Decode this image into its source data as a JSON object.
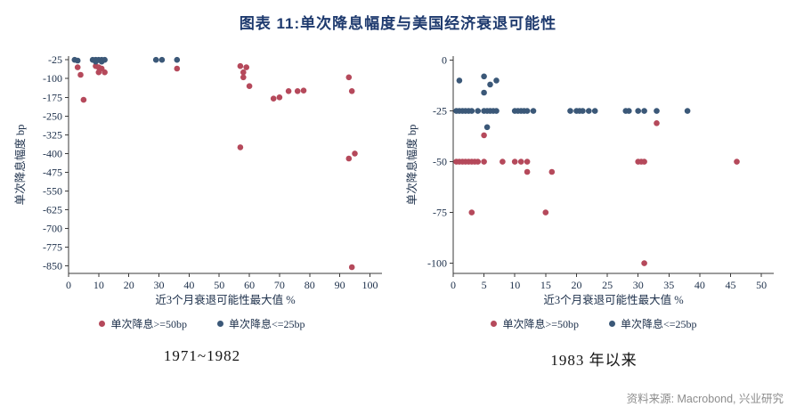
{
  "title": "图表 11:单次降息幅度与美国经济衰退可能性",
  "source": "资料来源: Macrobond, 兴业研究",
  "colors": {
    "red": "#b5495b",
    "navy": "#3b5878",
    "title": "#1e3a6e",
    "axis_text": "#1c2f4a",
    "source_text": "#8c8c8c"
  },
  "chart_data": [
    {
      "type": "scatter",
      "caption": "1971~1982",
      "xlabel": "近3个月衰退可能性最大值 %",
      "ylabel": "单次降息幅度 bp",
      "xlim": [
        0,
        104
      ],
      "ylim": [
        -880,
        -10
      ],
      "xticks": [
        0,
        10,
        20,
        30,
        40,
        50,
        60,
        70,
        80,
        90,
        100
      ],
      "yticks": [
        -25,
        -100,
        -175,
        -250,
        -325,
        -400,
        -475,
        -550,
        -625,
        -700,
        -775,
        -850
      ],
      "grid": false,
      "legend_position": "bottom",
      "series": [
        {
          "name": "单次降息>=50bp",
          "color_key": "red",
          "points": [
            [
              3,
              -55
            ],
            [
              4,
              -85
            ],
            [
              5,
              -185
            ],
            [
              9,
              -50
            ],
            [
              10,
              -55
            ],
            [
              10,
              -75
            ],
            [
              11,
              -60
            ],
            [
              12,
              -75
            ],
            [
              36,
              -60
            ],
            [
              57,
              -50
            ],
            [
              59,
              -55
            ],
            [
              58,
              -75
            ],
            [
              58,
              -95
            ],
            [
              60,
              -130
            ],
            [
              57,
              -375
            ],
            [
              68,
              -180
            ],
            [
              70,
              -175
            ],
            [
              73,
              -150
            ],
            [
              76,
              -150
            ],
            [
              78,
              -148
            ],
            [
              93,
              -95
            ],
            [
              94,
              -150
            ],
            [
              93,
              -420
            ],
            [
              95,
              -400
            ],
            [
              94,
              -855
            ]
          ]
        },
        {
          "name": "单次降息<=25bp",
          "color_key": "navy",
          "points": [
            [
              2,
              -25
            ],
            [
              3,
              -28
            ],
            [
              8,
              -25
            ],
            [
              9,
              -25
            ],
            [
              9,
              -32
            ],
            [
              10,
              -25
            ],
            [
              11,
              -25
            ],
            [
              11,
              -32
            ],
            [
              12,
              -25
            ],
            [
              29,
              -25
            ],
            [
              31,
              -25
            ],
            [
              36,
              -25
            ]
          ]
        }
      ]
    },
    {
      "type": "scatter",
      "caption": "1983 年以来",
      "xlabel": "近3个月衰退可能性最大值 %",
      "ylabel": "单次降息幅度 bp",
      "xlim": [
        0,
        52
      ],
      "ylim": [
        -105,
        2
      ],
      "xticks": [
        0,
        5,
        10,
        15,
        20,
        25,
        30,
        35,
        40,
        45,
        50
      ],
      "yticks": [
        0,
        -25,
        -50,
        -75,
        -100
      ],
      "grid": false,
      "legend_position": "bottom",
      "series": [
        {
          "name": "单次降息>=50bp",
          "color_key": "red",
          "points": [
            [
              0.5,
              -50
            ],
            [
              1,
              -50
            ],
            [
              1.5,
              -50
            ],
            [
              2,
              -50
            ],
            [
              2.5,
              -50
            ],
            [
              3,
              -50
            ],
            [
              3.5,
              -50
            ],
            [
              4,
              -50
            ],
            [
              5,
              -50
            ],
            [
              5,
              -37
            ],
            [
              8,
              -50
            ],
            [
              10,
              -50
            ],
            [
              11,
              -50
            ],
            [
              12,
              -50
            ],
            [
              12,
              -55
            ],
            [
              16,
              -55
            ],
            [
              3,
              -75
            ],
            [
              15,
              -75
            ],
            [
              30,
              -50
            ],
            [
              30.5,
              -50
            ],
            [
              31,
              -50
            ],
            [
              33,
              -31
            ],
            [
              31,
              -100
            ],
            [
              46,
              -50
            ]
          ]
        },
        {
          "name": "单次降息<=25bp",
          "color_key": "navy",
          "points": [
            [
              1,
              -10
            ],
            [
              5,
              -8
            ],
            [
              5,
              -16
            ],
            [
              6,
              -12
            ],
            [
              7,
              -10
            ],
            [
              0.5,
              -25
            ],
            [
              1,
              -25
            ],
            [
              1.5,
              -25
            ],
            [
              2,
              -25
            ],
            [
              2.5,
              -25
            ],
            [
              3,
              -25
            ],
            [
              4,
              -25
            ],
            [
              5,
              -25
            ],
            [
              5.5,
              -25
            ],
            [
              6,
              -25
            ],
            [
              6.5,
              -25
            ],
            [
              7,
              -25
            ],
            [
              5.5,
              -33
            ],
            [
              10,
              -25
            ],
            [
              10.5,
              -25
            ],
            [
              11,
              -25
            ],
            [
              11.5,
              -25
            ],
            [
              12,
              -25
            ],
            [
              13,
              -25
            ],
            [
              19,
              -25
            ],
            [
              20,
              -25
            ],
            [
              20.5,
              -25
            ],
            [
              21,
              -25
            ],
            [
              22,
              -25
            ],
            [
              23,
              -25
            ],
            [
              28,
              -25
            ],
            [
              28.5,
              -25
            ],
            [
              30,
              -25
            ],
            [
              31,
              -25
            ],
            [
              33,
              -25
            ],
            [
              38,
              -25
            ]
          ]
        }
      ]
    }
  ]
}
